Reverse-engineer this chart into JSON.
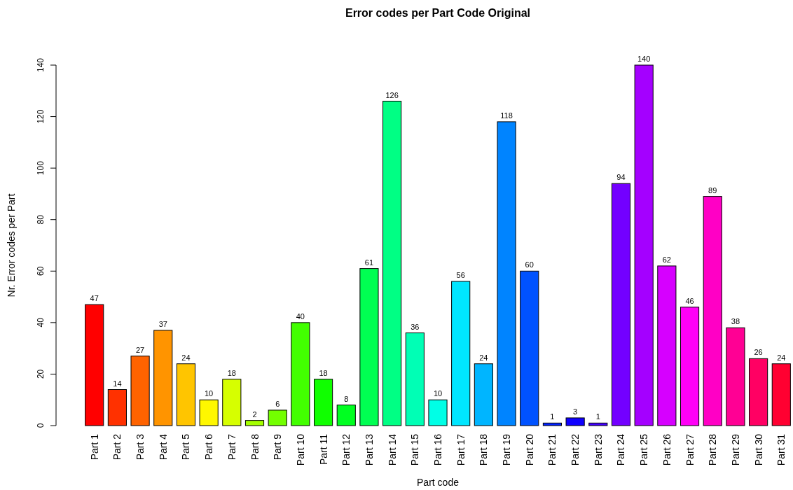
{
  "chart_data": {
    "type": "bar",
    "title": "Error codes per Part Code Original",
    "xlabel": "Part code",
    "ylabel": "Nr. Error codes per Part",
    "categories": [
      "Part 1",
      "Part 2",
      "Part 3",
      "Part 4",
      "Part 5",
      "Part 6",
      "Part 7",
      "Part 8",
      "Part 9",
      "Part 10",
      "Part 11",
      "Part 12",
      "Part 13",
      "Part 14",
      "Part 15",
      "Part 16",
      "Part 17",
      "Part 18",
      "Part 19",
      "Part 20",
      "Part 21",
      "Part 22",
      "Part 23",
      "Part 24",
      "Part 25",
      "Part 26",
      "Part 27",
      "Part 28",
      "Part 29",
      "Part 30",
      "Part 31"
    ],
    "values": [
      47,
      14,
      27,
      37,
      24,
      10,
      18,
      2,
      6,
      40,
      18,
      8,
      61,
      126,
      36,
      10,
      56,
      24,
      118,
      60,
      1,
      3,
      1,
      94,
      140,
      62,
      46,
      89,
      38,
      26,
      24
    ],
    "colors": [
      "#ff0000",
      "#ff3100",
      "#ff6300",
      "#ff9400",
      "#ffc500",
      "#fff700",
      "#d6ff00",
      "#a4ff00",
      "#73ff00",
      "#42ff00",
      "#10ff00",
      "#00ff21",
      "#00ff52",
      "#00ff84",
      "#00ffb5",
      "#00ffe6",
      "#00e6ff",
      "#00b5ff",
      "#0084ff",
      "#0052ff",
      "#0021ff",
      "#1000ff",
      "#4200ff",
      "#7300ff",
      "#a400ff",
      "#d600ff",
      "#ff00f7",
      "#ff00c5",
      "#ff0094",
      "#ff0063",
      "#ff0031"
    ],
    "ylim": [
      0,
      140
    ],
    "yticks": [
      0,
      20,
      40,
      60,
      80,
      100,
      120,
      140
    ],
    "data_labels": true,
    "grid": false
  }
}
